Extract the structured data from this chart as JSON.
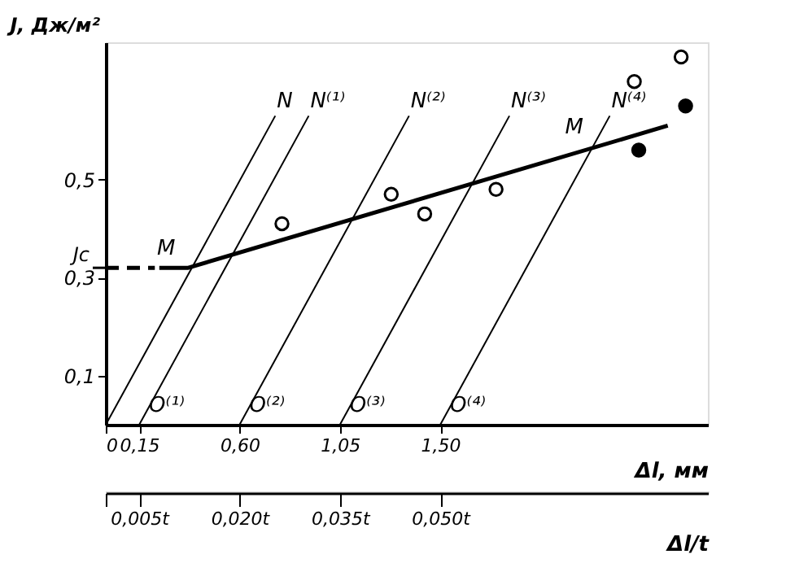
{
  "chart_data": {
    "type": "line",
    "ylabel": "J, Дж/м²",
    "xlabel": "Δl, мм",
    "x2label": "Δl/t",
    "xlim": [
      0,
      2.7
    ],
    "ylim": [
      0,
      0.78
    ],
    "xticks": [
      {
        "value": 0,
        "label": "0"
      },
      {
        "value": 0.15,
        "label": "0,15"
      },
      {
        "value": 0.6,
        "label": "0,60"
      },
      {
        "value": 1.05,
        "label": "1,05"
      },
      {
        "value": 1.5,
        "label": "1,50"
      }
    ],
    "yticks": [
      {
        "value": 0.1,
        "label": "0,1"
      },
      {
        "value": 0.3,
        "label": "0,3"
      },
      {
        "value": 0.5,
        "label": "0,5"
      }
    ],
    "ref_lines": [
      {
        "axis": "y",
        "value": 0.32,
        "label": "Jc"
      }
    ],
    "x2lim": [
      0,
      0.09
    ],
    "x2ticks": [
      {
        "value": 0,
        "label": null
      },
      {
        "value": 0.005,
        "label": "0,005t"
      },
      {
        "value": 0.02,
        "label": "0,020t"
      },
      {
        "value": 0.035,
        "label": "0,035t"
      },
      {
        "value": 0.05,
        "label": "0,050t"
      }
    ],
    "grid": false,
    "series": [
      {
        "color": "#000000",
        "line_style": "dashed",
        "x": [
          0,
          0.22
        ],
        "values": [
          0.32,
          0.32
        ]
      },
      {
        "color": "#000000",
        "line_style": "solid",
        "x": [
          0.24,
          0.37,
          2.52
        ],
        "values": [
          0.32,
          0.32,
          0.61
        ]
      },
      {
        "color": "#000000",
        "line_style": "solid",
        "x": [
          0,
          0.76
        ],
        "values": [
          0,
          0.63
        ]
      },
      {
        "color": "#000000",
        "line_style": "solid",
        "x": [
          0.15,
          0.91
        ],
        "values": [
          0,
          0.63
        ]
      },
      {
        "color": "#000000",
        "line_style": "solid",
        "x": [
          0.6,
          1.36
        ],
        "values": [
          0,
          0.63
        ]
      },
      {
        "color": "#000000",
        "line_style": "solid",
        "x": [
          1.05,
          1.81
        ],
        "values": [
          0,
          0.63
        ]
      },
      {
        "color": "#000000",
        "line_style": "solid",
        "x": [
          1.5,
          2.26
        ],
        "values": [
          0,
          0.63
        ]
      },
      {
        "type": "scatter",
        "color": "#000000",
        "marker": "circle",
        "x": [
          0.79,
          1.28,
          1.43,
          1.75,
          2.37,
          2.58
        ],
        "values": [
          0.41,
          0.47,
          0.43,
          0.48,
          0.7,
          0.75
        ]
      },
      {
        "type": "scatter",
        "color": "#000000",
        "marker": "circle",
        "x": [
          2.39,
          2.6
        ],
        "values": [
          0.56,
          0.65
        ]
      }
    ],
    "annotations": [
      {
        "text": "M",
        "x": 0.37,
        "y": 0.32
      },
      {
        "text": "M",
        "x": 2.2,
        "y": 0.567
      },
      {
        "text": "N",
        "x": 0.76,
        "y": 0.63
      },
      {
        "text": "N⁽¹⁾",
        "x": 0.91,
        "y": 0.63
      },
      {
        "text": "N⁽²⁾",
        "x": 1.36,
        "y": 0.63
      },
      {
        "text": "N⁽³⁾",
        "x": 1.81,
        "y": 0.63
      },
      {
        "text": "N⁽⁴⁾",
        "x": 2.26,
        "y": 0.63
      },
      {
        "text": "O⁽¹⁾",
        "x": 0.15,
        "y": 0
      },
      {
        "text": "O⁽²⁾",
        "x": 0.6,
        "y": 0
      },
      {
        "text": "O⁽³⁾",
        "x": 1.05,
        "y": 0
      },
      {
        "text": "O⁽⁴⁾",
        "x": 1.5,
        "y": 0
      }
    ]
  }
}
